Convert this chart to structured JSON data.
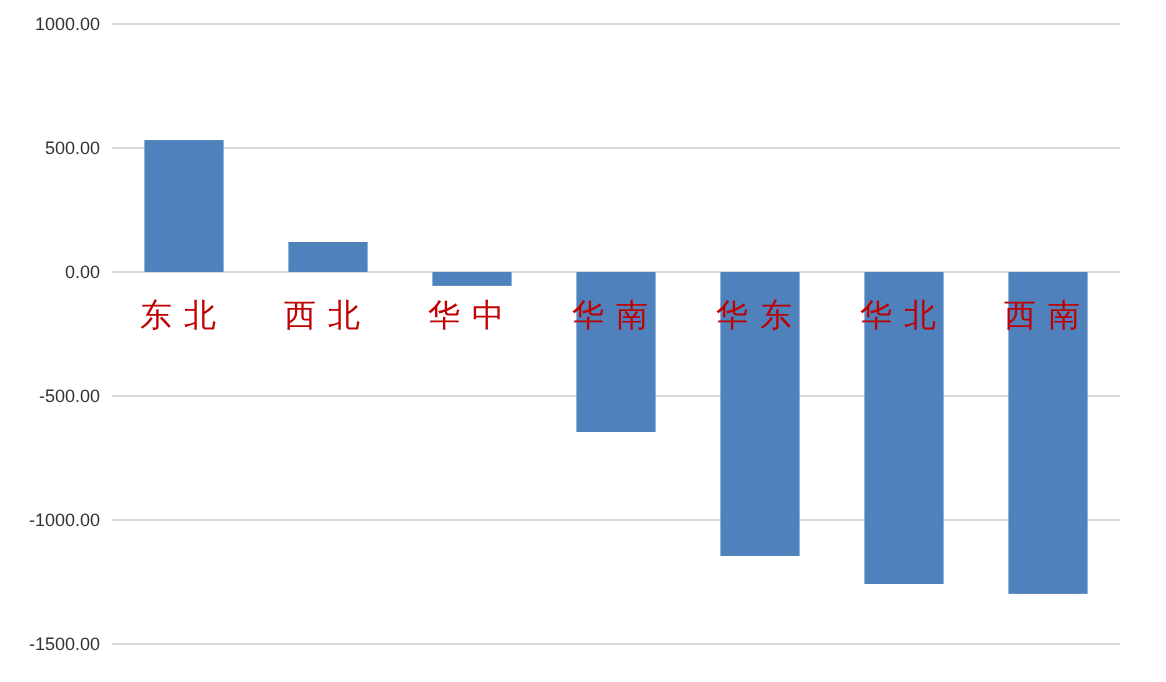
{
  "chart_data": {
    "type": "bar",
    "categories": [
      "东北",
      "西北",
      "华中",
      "华南",
      "华东",
      "华北",
      "西南"
    ],
    "values": [
      532,
      121,
      -56,
      -645,
      -1145,
      -1258,
      -1298
    ],
    "color": "#4f81bd",
    "ylim": [
      -1500,
      1000
    ],
    "yticks": [
      {
        "value": -1500,
        "label": "-1500.00"
      },
      {
        "value": -1000,
        "label": "-1000.00"
      },
      {
        "value": -500,
        "label": "-500.00"
      },
      {
        "value": 0,
        "label": "0.00"
      },
      {
        "value": 500,
        "label": "500.00"
      },
      {
        "value": 1000,
        "label": "1000.00"
      }
    ],
    "grid": "y"
  }
}
